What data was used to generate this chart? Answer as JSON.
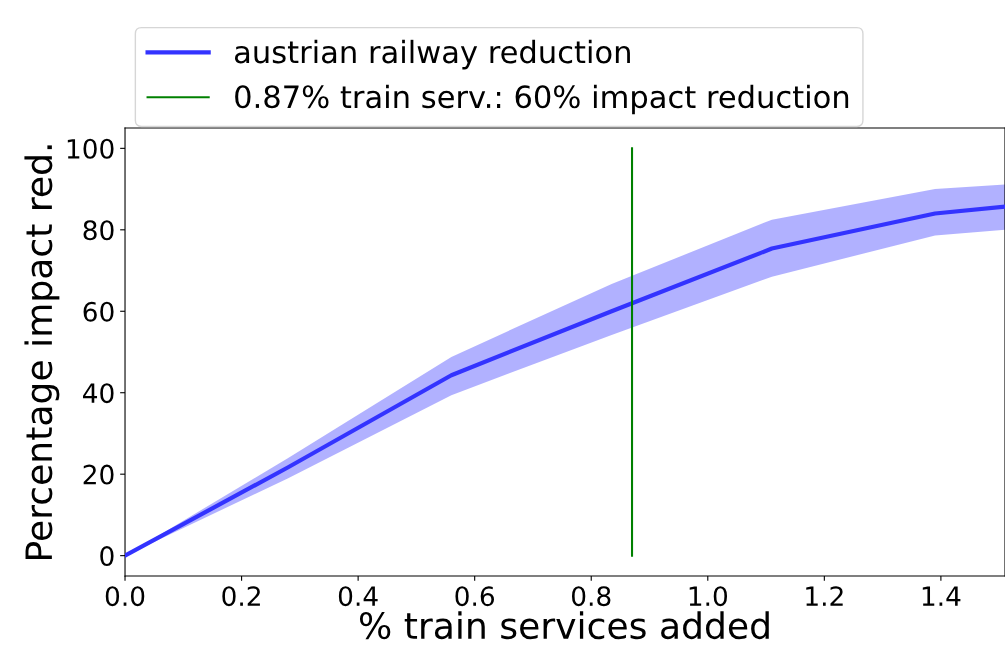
{
  "chart_data": {
    "type": "line",
    "xlabel": "% train services added",
    "ylabel": "Percentage impact red.",
    "xlim": [
      0,
      1.51
    ],
    "ylim": [
      -5,
      105
    ],
    "xticks": [
      {
        "value": 0,
        "label": "0.0"
      },
      {
        "value": 0.2,
        "label": "0.2"
      },
      {
        "value": 0.4,
        "label": "0.4"
      },
      {
        "value": 0.6,
        "label": "0.6"
      },
      {
        "value": 0.8,
        "label": "0.8"
      },
      {
        "value": 1.0,
        "label": "1.0"
      },
      {
        "value": 1.2,
        "label": "1.2"
      },
      {
        "value": 1.4,
        "label": "1.4"
      }
    ],
    "yticks": [
      0,
      20,
      40,
      60,
      80,
      100
    ],
    "series": [
      {
        "name": "austrian railway reduction",
        "color": "#3333ff",
        "x": [
          0,
          0.28,
          0.56,
          0.835,
          1.11,
          1.39,
          1.51
        ],
        "values": [
          0,
          21.7,
          44.3,
          60,
          75.4,
          84,
          85.7
        ],
        "lower": [
          0,
          19,
          39.4,
          54.2,
          68.5,
          78.6,
          80
        ],
        "upper": [
          0,
          24,
          48.8,
          66.7,
          82.5,
          90,
          91.1
        ]
      },
      {
        "name": "0.87% train serv.: 60% impact reduction",
        "color": "#008000",
        "x": [
          0.87,
          0.87
        ],
        "values": [
          0,
          100
        ]
      }
    ],
    "legend": "top",
    "grid": false
  }
}
